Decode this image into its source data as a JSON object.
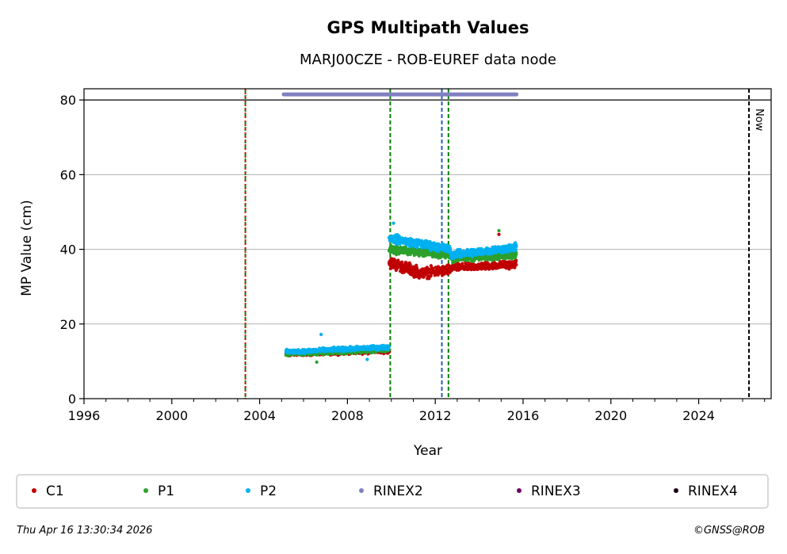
{
  "chart_data": {
    "type": "scatter",
    "title": "GPS Multipath Values",
    "subtitle": "MARJ00CZE - ROB-EUREF data node",
    "xlabel": "Year",
    "ylabel": "MP Value (cm)",
    "xlim": [
      1996,
      2027.3
    ],
    "ylim": [
      0,
      83
    ],
    "x_ticks": [
      1996,
      2000,
      2004,
      2008,
      2012,
      2016,
      2020,
      2024
    ],
    "y_ticks": [
      0,
      20,
      40,
      60,
      80
    ],
    "grid": "y",
    "legend_position": "bottom",
    "colors": {
      "C1": "#c00000",
      "P1": "#2ca02c",
      "P2": "#00b0f0",
      "RINEX2": "#8080c0",
      "RINEX3": "#6b0060",
      "RINEX4": "#1a0018",
      "vline_green": "#008000",
      "vline_red": "#ff0000",
      "vline_blue": "#1f5fbf",
      "vline_now": "#000000"
    },
    "series": [
      {
        "name": "C1",
        "segments": [
          {
            "start": 2005.2,
            "end": 2009.9,
            "level_start": 12.0,
            "level_end": 12.8,
            "noise": 0.8
          },
          {
            "start": 2009.9,
            "end": 2011.2,
            "level_start": 36.5,
            "level_end": 34.0,
            "noise": 2.2
          },
          {
            "start": 2011.2,
            "end": 2012.7,
            "level_start": 33.5,
            "level_end": 34.5,
            "noise": 2.0
          },
          {
            "start": 2012.7,
            "end": 2015.7,
            "level_start": 35.0,
            "level_end": 36.0,
            "noise": 1.4
          }
        ]
      },
      {
        "name": "P1",
        "segments": [
          {
            "start": 2005.2,
            "end": 2009.9,
            "level_start": 12.0,
            "level_end": 13.0,
            "noise": 0.7
          },
          {
            "start": 2009.9,
            "end": 2012.7,
            "level_start": 40.0,
            "level_end": 38.5,
            "noise": 1.5
          },
          {
            "start": 2012.7,
            "end": 2015.7,
            "level_start": 37.5,
            "level_end": 38.5,
            "noise": 1.4
          }
        ]
      },
      {
        "name": "P2",
        "segments": [
          {
            "start": 2005.2,
            "end": 2009.9,
            "level_start": 12.5,
            "level_end": 13.8,
            "noise": 0.8
          },
          {
            "start": 2009.9,
            "end": 2012.7,
            "level_start": 43.0,
            "level_end": 40.0,
            "noise": 1.6
          },
          {
            "start": 2012.7,
            "end": 2015.7,
            "level_start": 38.5,
            "level_end": 40.5,
            "noise": 1.5
          }
        ]
      },
      {
        "name": "RINEX2",
        "start": 2005.1,
        "end": 2015.7,
        "value": 81.5
      }
    ],
    "outliers": [
      {
        "series": "P2",
        "x": 2006.8,
        "y": 17.2
      },
      {
        "series": "P1",
        "x": 2006.6,
        "y": 9.8
      },
      {
        "series": "P2",
        "x": 2008.9,
        "y": 10.5
      },
      {
        "series": "P1",
        "x": 2014.9,
        "y": 45.0
      },
      {
        "series": "C1",
        "x": 2014.9,
        "y": 44.0
      },
      {
        "series": "P2",
        "x": 2010.1,
        "y": 47.0
      }
    ],
    "vlines": [
      {
        "x": 2003.35,
        "color": "vline_green",
        "style": "dashed"
      },
      {
        "x": 2003.35,
        "color": "vline_red",
        "style": "dotted"
      },
      {
        "x": 2009.95,
        "color": "vline_green",
        "style": "dashed"
      },
      {
        "x": 2012.3,
        "color": "vline_blue",
        "style": "dashed"
      },
      {
        "x": 2012.6,
        "color": "vline_green",
        "style": "dashed"
      },
      {
        "x": 2026.29,
        "color": "vline_now",
        "style": "dashed"
      }
    ],
    "now_label": "Now",
    "legend": [
      "C1",
      "P1",
      "P2",
      "RINEX2",
      "RINEX3",
      "RINEX4"
    ]
  },
  "footer": {
    "timestamp": "Thu Apr 16 13:30:34 2026",
    "credit": "©GNSS@ROB"
  }
}
